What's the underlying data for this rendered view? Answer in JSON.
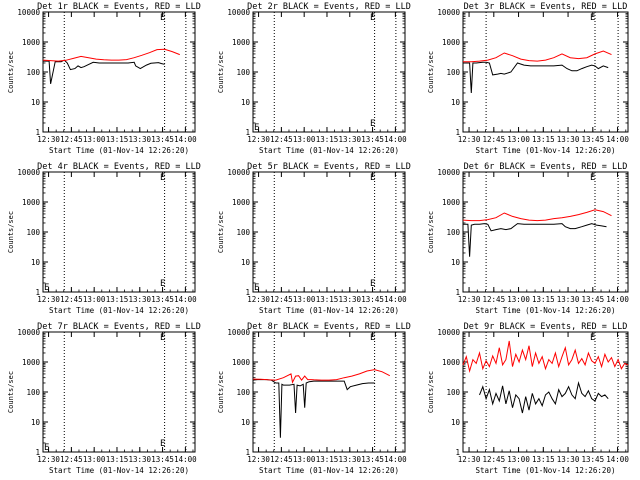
{
  "figure": {
    "xlabel": "Start Time (01-Nov-14 12:26:20)",
    "ylabel": "Counts/sec",
    "event_color": "#000000",
    "lld_color": "#ff0000",
    "gap_marker": "E",
    "x_ticks": [
      "12:30",
      "12:45",
      "13:00",
      "13:15",
      "13:30",
      "13:45",
      "14:00"
    ]
  },
  "chart_data": [
    {
      "type": "line",
      "title": "Det 1r BLACK = Events, RED = LLD",
      "y_ticks": [
        "1",
        "10",
        "100",
        "1000",
        "10000"
      ],
      "scale": "log",
      "ylim": [
        1,
        10000
      ],
      "xlim_min": [
        0,
        100
      ],
      "vlines_min": [
        14,
        80,
        94
      ],
      "marker_min": 77,
      "series": [
        {
          "name": "Events",
          "x": [
            0,
            3,
            4,
            5,
            8,
            12,
            14,
            16,
            18,
            21,
            23,
            25,
            27,
            33,
            37,
            41,
            46,
            51,
            56,
            60,
            61,
            64,
            68,
            71,
            73,
            76,
            78,
            80
          ],
          "y": [
            230,
            230,
            230,
            40,
            220,
            220,
            250,
            200,
            120,
            130,
            160,
            140,
            150,
            210,
            200,
            200,
            200,
            200,
            200,
            210,
            160,
            130,
            170,
            195,
            200,
            205,
            190,
            180
          ]
        },
        {
          "name": "LLD",
          "x": [
            0,
            5,
            10,
            15,
            20,
            25,
            30,
            35,
            40,
            45,
            50,
            55,
            60,
            65,
            70,
            75,
            80,
            85,
            90
          ],
          "y": [
            250,
            240,
            230,
            245,
            285,
            330,
            300,
            270,
            255,
            250,
            250,
            260,
            300,
            360,
            440,
            560,
            570,
            480,
            380
          ]
        }
      ]
    },
    {
      "type": "line",
      "title": "Det 2r BLACK = Events, RED = LLD",
      "y_ticks": [
        "1",
        "10",
        "100",
        "1000",
        "10000"
      ],
      "scale": "log",
      "ylim": [
        1,
        10000
      ],
      "xlim_min": [
        0,
        100
      ],
      "vlines_min": [
        14,
        80,
        94
      ],
      "marker_min": 77,
      "series": []
    },
    {
      "type": "line",
      "title": "Det 3r BLACK = Events, RED = LLD",
      "y_ticks": [
        "1",
        "10",
        "100",
        "1000",
        "10000"
      ],
      "scale": "log",
      "ylim": [
        1,
        10000
      ],
      "xlim_min": [
        0,
        100
      ],
      "vlines_min": [
        14,
        80,
        94
      ],
      "marker_min": 77,
      "series": [
        {
          "name": "Events",
          "x": [
            0,
            4,
            5,
            6,
            8,
            12,
            14,
            16,
            18,
            21,
            23,
            25,
            29,
            33,
            37,
            41,
            45,
            50,
            55,
            60,
            63,
            66,
            69,
            72,
            75,
            78,
            80,
            82,
            85,
            88
          ],
          "y": [
            200,
            200,
            20,
            200,
            200,
            210,
            210,
            200,
            80,
            85,
            90,
            85,
            100,
            200,
            170,
            160,
            160,
            160,
            160,
            170,
            130,
            110,
            110,
            130,
            150,
            170,
            160,
            130,
            160,
            140
          ]
        },
        {
          "name": "LLD",
          "x": [
            0,
            5,
            10,
            15,
            20,
            25,
            30,
            35,
            40,
            45,
            50,
            55,
            60,
            65,
            70,
            75,
            80,
            85,
            90
          ],
          "y": [
            220,
            220,
            230,
            250,
            300,
            430,
            350,
            270,
            240,
            230,
            250,
            300,
            400,
            300,
            280,
            300,
            400,
            500,
            380
          ]
        }
      ]
    },
    {
      "type": "line",
      "title": "Det 4r BLACK = Events, RED = LLD",
      "y_ticks": [
        "1",
        "10",
        "100",
        "1000",
        "10000"
      ],
      "scale": "log",
      "ylim": [
        1,
        10000
      ],
      "xlim_min": [
        0,
        100
      ],
      "vlines_min": [
        14,
        80,
        94
      ],
      "marker_min": 77,
      "series": []
    },
    {
      "type": "line",
      "title": "Det 5r BLACK = Events, RED = LLD",
      "y_ticks": [
        "1",
        "10",
        "100",
        "1000",
        "10000"
      ],
      "scale": "log",
      "ylim": [
        1,
        10000
      ],
      "xlim_min": [
        0,
        100
      ],
      "vlines_min": [
        14,
        80,
        94
      ],
      "marker_min": 77,
      "series": []
    },
    {
      "type": "line",
      "title": "Det 6r BLACK = Events, RED = LLD",
      "y_ticks": [
        "1",
        "10",
        "100",
        "1000",
        "10000"
      ],
      "scale": "log",
      "ylim": [
        1,
        10000
      ],
      "xlim_min": [
        0,
        100
      ],
      "vlines_min": [
        14,
        80,
        94
      ],
      "marker_min": 77,
      "series": [
        {
          "name": "Events",
          "x": [
            0,
            3,
            4,
            5,
            7,
            10,
            13,
            15,
            17,
            20,
            23,
            26,
            29,
            33,
            37,
            41,
            45,
            50,
            55,
            60,
            62,
            65,
            68,
            72,
            75,
            78,
            81,
            84,
            87
          ],
          "y": [
            180,
            180,
            15,
            170,
            180,
            180,
            190,
            180,
            110,
            120,
            130,
            120,
            130,
            190,
            180,
            180,
            180,
            180,
            180,
            190,
            150,
            130,
            130,
            150,
            170,
            190,
            170,
            160,
            150
          ]
        },
        {
          "name": "LLD",
          "x": [
            0,
            5,
            10,
            15,
            20,
            25,
            30,
            35,
            40,
            45,
            50,
            55,
            60,
            65,
            70,
            75,
            80,
            85,
            90
          ],
          "y": [
            250,
            240,
            240,
            260,
            300,
            430,
            330,
            280,
            250,
            240,
            250,
            280,
            300,
            330,
            380,
            450,
            550,
            480,
            350
          ]
        }
      ]
    },
    {
      "type": "line",
      "title": "Det 7r BLACK = Events, RED = LLD",
      "y_ticks": [
        "1",
        "10",
        "100",
        "1000",
        "10000"
      ],
      "scale": "log",
      "ylim": [
        1,
        10000
      ],
      "xlim_min": [
        0,
        100
      ],
      "vlines_min": [
        14,
        80,
        94
      ],
      "marker_min": 77,
      "series": []
    },
    {
      "type": "line",
      "title": "Det 8r BLACK = Events, RED = LLD",
      "y_ticks": [
        "1",
        "10",
        "100",
        "1000",
        "10000"
      ],
      "scale": "log",
      "ylim": [
        1,
        10000
      ],
      "xlim_min": [
        0,
        100
      ],
      "vlines_min": [
        14,
        80,
        94
      ],
      "marker_min": 77,
      "series": [
        {
          "name": "Events",
          "x": [
            0,
            3,
            6,
            9,
            12,
            15,
            17,
            18,
            19,
            20,
            24,
            27,
            28,
            29,
            31,
            33,
            34,
            35,
            37,
            40,
            45,
            50,
            55,
            60,
            62,
            64,
            68,
            72,
            76,
            80
          ],
          "y": [
            250,
            260,
            260,
            260,
            250,
            200,
            200,
            3,
            180,
            170,
            170,
            180,
            20,
            170,
            160,
            180,
            30,
            200,
            220,
            230,
            230,
            230,
            230,
            230,
            120,
            150,
            170,
            190,
            200,
            200
          ]
        },
        {
          "name": "LLD",
          "x": [
            0,
            5,
            10,
            15,
            20,
            25,
            26,
            28,
            30,
            32,
            34,
            36,
            38,
            40,
            45,
            50,
            55,
            60,
            65,
            70,
            75,
            80,
            85,
            90
          ],
          "y": [
            270,
            265,
            255,
            250,
            300,
            400,
            210,
            340,
            350,
            250,
            340,
            260,
            260,
            255,
            250,
            250,
            260,
            300,
            340,
            400,
            500,
            560,
            470,
            350
          ]
        }
      ]
    },
    {
      "type": "line",
      "title": "Det 9r BLACK = Events, RED = LLD",
      "y_ticks": [
        "1",
        "10",
        "100",
        "1000",
        "10000"
      ],
      "scale": "log",
      "ylim": [
        1,
        10000
      ],
      "xlim_min": [
        0,
        100
      ],
      "vlines_min": [
        14,
        80,
        94
      ],
      "marker_min": 77,
      "series": [
        {
          "name": "Events",
          "x": [
            10,
            12,
            14,
            16,
            18,
            20,
            22,
            24,
            26,
            28,
            30,
            32,
            34,
            36,
            38,
            40,
            42,
            44,
            46,
            48,
            50,
            52,
            54,
            56,
            58,
            60,
            62,
            64,
            66,
            68,
            70,
            72,
            74,
            76,
            78,
            80,
            82,
            84,
            86,
            88
          ],
          "y": [
            80,
            150,
            60,
            120,
            40,
            90,
            50,
            160,
            40,
            110,
            30,
            80,
            60,
            20,
            70,
            25,
            90,
            40,
            60,
            35,
            80,
            100,
            60,
            40,
            120,
            70,
            90,
            150,
            80,
            60,
            200,
            90,
            70,
            110,
            60,
            50,
            90,
            70,
            80,
            60
          ]
        },
        {
          "name": "LLD",
          "x": [
            0,
            2,
            4,
            6,
            8,
            10,
            12,
            14,
            16,
            18,
            20,
            22,
            24,
            26,
            28,
            30,
            32,
            34,
            36,
            38,
            40,
            42,
            44,
            46,
            48,
            50,
            52,
            54,
            56,
            58,
            60,
            62,
            64,
            66,
            68,
            70,
            72,
            74,
            76,
            78,
            80,
            82,
            84,
            86,
            88,
            90,
            92,
            94,
            96,
            98,
            100
          ],
          "y": [
            800,
            1500,
            500,
            1200,
            900,
            2000,
            600,
            1100,
            700,
            1600,
            900,
            3000,
            800,
            1200,
            5000,
            700,
            1800,
            1000,
            2500,
            1200,
            3500,
            700,
            2000,
            900,
            1500,
            600,
            1200,
            900,
            2000,
            700,
            1500,
            3000,
            800,
            1200,
            2500,
            900,
            1300,
            800,
            2000,
            1100,
            900,
            1500,
            700,
            1800,
            1000,
            1400,
            700,
            1200,
            600,
            900,
            800
          ]
        }
      ]
    }
  ]
}
